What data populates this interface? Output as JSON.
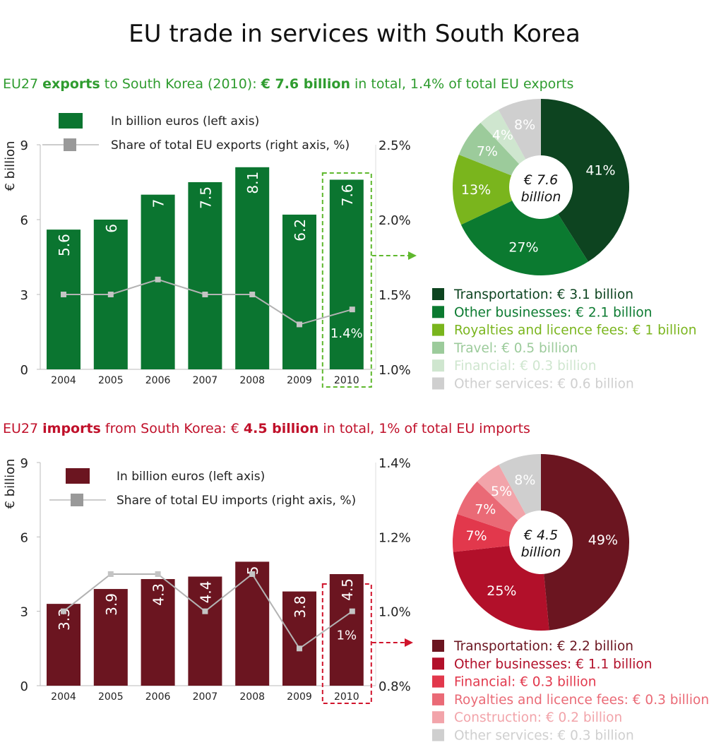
{
  "title": "EU trade in services with South Korea",
  "exports_heading": {
    "a": "EU27 ",
    "b": "exports",
    "c": " to South Korea (2010): ",
    "d": "€ 7.6 billion",
    "e": " in total, 1.4% of total EU exports"
  },
  "imports_heading": {
    "a": "EU27 ",
    "b": "imports",
    "c": " from South Korea: € ",
    "d": "4.5 billion",
    "e": " in total, 1% of total EU imports"
  },
  "chart_data": [
    {
      "type": "bar",
      "ylabel": "€ billion",
      "categories": [
        "2004",
        "2005",
        "2006",
        "2007",
        "2008",
        "2009",
        "2010"
      ],
      "ylim": [
        0,
        9
      ],
      "yticks": [
        "0",
        "3",
        "6",
        "9"
      ],
      "y2lim": [
        1.0,
        2.5
      ],
      "y2ticks": [
        "1.0%",
        "1.5%",
        "2.0%",
        "2.5%"
      ],
      "series": [
        {
          "name": "In billion euros (left axis)",
          "type": "bar",
          "axis": "left",
          "values": [
            5.6,
            6,
            7,
            7.5,
            8.1,
            6.2,
            7.6
          ],
          "labels": [
            "5.6",
            "6",
            "7",
            "7.5",
            "8.1",
            "6.2",
            "7.6"
          ],
          "color": "#0b7530"
        },
        {
          "name": "Share of total EU exports (right axis, %)",
          "type": "line",
          "axis": "right",
          "values": [
            1.5,
            1.5,
            1.6,
            1.5,
            1.5,
            1.3,
            1.4
          ],
          "last_label": "1.4%",
          "color": "#b3b3b3"
        }
      ],
      "highlight": "2010",
      "highlight_color": "#5fb82e"
    },
    {
      "type": "pie",
      "center_label": [
        "€ 7.6",
        "billion"
      ],
      "slices": [
        {
          "label": "Transportation: € 3.1 billion",
          "value": 41,
          "text": "41%",
          "color": "#0d4420"
        },
        {
          "label": "Other businesses: € 2.1 billion",
          "value": 27,
          "text": "27%",
          "color": "#0b7a30"
        },
        {
          "label": "Royalties and licence fees: € 1 billion",
          "value": 13,
          "text": "13%",
          "color": "#7ab51d"
        },
        {
          "label": "Travel: € 0.5 billion",
          "value": 7,
          "text": "7%",
          "color": "#9ccb9b"
        },
        {
          "label": "Financial: € 0.3 billion",
          "value": 4,
          "text": "4%",
          "color": "#cfe6cf"
        },
        {
          "label": "Other services: € 0.6 billion",
          "value": 8,
          "text": "8%",
          "color": "#cfcfcf"
        }
      ]
    },
    {
      "type": "bar",
      "ylabel": "€ billion",
      "categories": [
        "2004",
        "2005",
        "2006",
        "2007",
        "2008",
        "2009",
        "2010"
      ],
      "ylim": [
        0,
        9
      ],
      "yticks": [
        "0",
        "3",
        "6",
        "9"
      ],
      "y2lim": [
        0.8,
        1.4
      ],
      "y2ticks": [
        "0.8%",
        "1.0%",
        "1.2%",
        "1.4%"
      ],
      "series": [
        {
          "name": "In billion euros (left axis)",
          "type": "bar",
          "axis": "left",
          "values": [
            3.3,
            3.9,
            4.3,
            4.4,
            5,
            3.8,
            4.5
          ],
          "labels": [
            "3.3",
            "3.9",
            "4.3",
            "4.4",
            "5",
            "3.8",
            "4.5"
          ],
          "color": "#6b1520"
        },
        {
          "name": "Share of total EU imports (right axis, %)",
          "type": "line",
          "axis": "right",
          "values": [
            1.0,
            1.1,
            1.1,
            1.0,
            1.1,
            0.9,
            1.0
          ],
          "last_label": "1%",
          "color": "#b3b3b3"
        }
      ],
      "highlight": "2010",
      "highlight_color": "#d0142c"
    },
    {
      "type": "pie",
      "center_label": [
        "€ 4.5",
        "billion"
      ],
      "slices": [
        {
          "label": "Transportation: € 2.2 billion",
          "value": 49,
          "text": "49%",
          "color": "#6b1520"
        },
        {
          "label": "Other businesses: € 1.1 billion",
          "value": 25,
          "text": "25%",
          "color": "#b2102a"
        },
        {
          "label": "Financial: € 0.3 billion",
          "value": 7,
          "text": "7%",
          "color": "#e2384c"
        },
        {
          "label": "Royalties and licence fees: € 0.3 billion",
          "value": 7,
          "text": "7%",
          "color": "#ea6a76"
        },
        {
          "label": "Construction: € 0.2 billion",
          "value": 5,
          "text": "5%",
          "color": "#f2a4aa"
        },
        {
          "label": "Other services: € 0.3 billion",
          "value": 8,
          "text": "8%",
          "color": "#cfcfcf"
        }
      ]
    }
  ]
}
